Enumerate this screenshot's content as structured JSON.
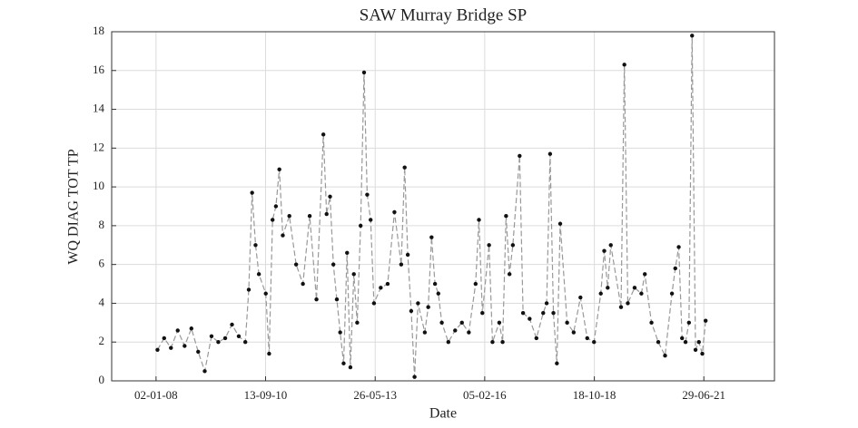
{
  "chart_data": {
    "type": "line",
    "title": "SAW Murray Bridge SP",
    "x_label": "Date",
    "y_label": "WQ DIAG TOT TP",
    "x": [
      "15-01-08",
      "15-03-08",
      "15-05-08",
      "15-07-08",
      "15-09-08",
      "15-11-08",
      "15-01-09",
      "15-03-09",
      "15-05-09",
      "15-07-09",
      "15-09-09",
      "15-11-09",
      "15-01-10",
      "15-03-10",
      "15-04-10",
      "15-05-10",
      "15-06-10",
      "15-07-10",
      "15-09-10",
      "15-10-10",
      "15-11-10",
      "15-12-10",
      "15-01-11",
      "15-02-11",
      "15-04-11",
      "15-06-11",
      "15-08-11",
      "15-10-11",
      "15-12-11",
      "15-02-12",
      "15-03-12",
      "15-04-12",
      "15-05-12",
      "15-06-12",
      "15-07-12",
      "15-08-12",
      "15-09-12",
      "15-10-12",
      "15-11-12",
      "15-12-12",
      "15-01-13",
      "15-02-13",
      "15-03-13",
      "15-04-13",
      "15-05-13",
      "15-07-13",
      "15-09-13",
      "15-11-13",
      "15-01-14",
      "15-02-14",
      "15-03-14",
      "15-04-14",
      "15-05-14",
      "15-06-14",
      "15-08-14",
      "15-09-14",
      "15-10-14",
      "15-11-14",
      "15-12-14",
      "15-01-15",
      "15-03-15",
      "15-05-15",
      "15-07-15",
      "15-09-15",
      "15-11-15",
      "15-12-15",
      "15-01-16",
      "15-03-16",
      "15-04-16",
      "15-06-16",
      "15-07-16",
      "15-08-16",
      "15-09-16",
      "15-10-16",
      "15-12-16",
      "15-01-17",
      "15-03-17",
      "15-05-17",
      "15-07-17",
      "15-08-17",
      "15-09-17",
      "15-10-17",
      "15-11-17",
      "15-12-17",
      "15-02-18",
      "15-04-18",
      "15-06-18",
      "15-08-18",
      "15-10-18",
      "15-12-18",
      "15-01-19",
      "15-02-19",
      "15-03-19",
      "15-06-19",
      "15-07-19",
      "15-08-19",
      "15-10-19",
      "15-12-19",
      "15-01-20",
      "15-03-20",
      "15-05-20",
      "15-07-20",
      "15-09-20",
      "15-10-20",
      "15-11-20",
      "15-12-20",
      "15-01-21",
      "15-02-21",
      "15-03-21",
      "15-04-21",
      "15-05-21",
      "15-06-21",
      "15-07-21"
    ],
    "series": [
      {
        "line_color": "#999999",
        "marker_color": "#111111",
        "values": [
          1.6,
          2.2,
          1.7,
          2.6,
          1.8,
          2.7,
          1.5,
          0.5,
          2.3,
          2.0,
          2.2,
          2.9,
          2.3,
          2.0,
          4.7,
          9.7,
          7.0,
          5.5,
          4.5,
          1.4,
          8.3,
          9.0,
          10.9,
          7.5,
          8.5,
          6.0,
          5.0,
          8.5,
          4.2,
          12.7,
          8.6,
          9.5,
          6.0,
          4.2,
          2.5,
          0.9,
          6.6,
          0.7,
          5.5,
          3.0,
          8.0,
          15.9,
          9.6,
          8.3,
          4.0,
          4.8,
          5.0,
          8.7,
          6.0,
          11.0,
          6.5,
          3.6,
          0.2,
          4.0,
          2.5,
          3.8,
          7.4,
          5.0,
          4.5,
          3.0,
          2.0,
          2.6,
          3.0,
          2.5,
          5.0,
          8.3,
          3.5,
          7.0,
          2.0,
          3.0,
          2.0,
          8.5,
          5.5,
          7.0,
          11.6,
          3.5,
          3.2,
          2.2,
          3.5,
          4.0,
          11.7,
          3.5,
          0.9,
          8.1,
          3.0,
          2.5,
          4.3,
          2.2,
          2.0,
          4.5,
          6.7,
          4.8,
          7.0,
          3.8,
          16.3,
          4.0,
          4.8,
          4.5,
          5.5,
          3.0,
          2.0,
          1.3,
          4.5,
          5.8,
          6.9,
          2.2,
          2.0,
          3.0,
          17.8,
          1.6,
          2.0,
          1.4,
          3.1
        ]
      }
    ],
    "xlim": [
      "29-11-06",
      "26-03-23"
    ],
    "xticks": [
      "02-01-08",
      "13-09-10",
      "26-05-13",
      "05-02-16",
      "18-10-18",
      "29-06-21"
    ],
    "ylim": [
      0,
      18
    ],
    "yticks": [
      0,
      2,
      4,
      6,
      8,
      10,
      12,
      14,
      16,
      18
    ],
    "grid": true
  }
}
